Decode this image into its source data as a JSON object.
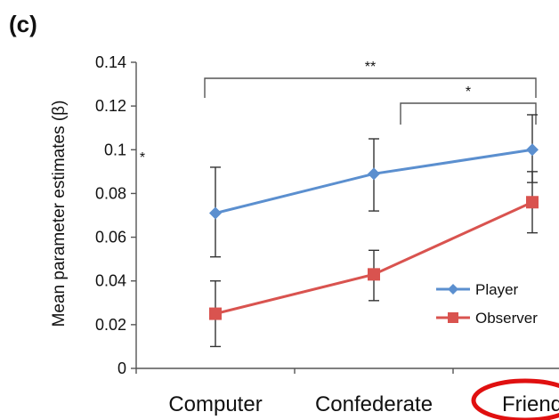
{
  "panel_label": "(c)",
  "chart_data": {
    "type": "line",
    "title": "",
    "ylabel": "Mean parameter estimates (β)",
    "xlabel": "",
    "categories": [
      "Computer",
      "Confederate",
      "Friend"
    ],
    "ylim": [
      0,
      0.14
    ],
    "yticks": [
      {
        "value": 0,
        "label": "0"
      },
      {
        "value": 0.02,
        "label": "0.02"
      },
      {
        "value": 0.04,
        "label": "0.04"
      },
      {
        "value": 0.06,
        "label": "0.06"
      },
      {
        "value": 0.08,
        "label": "0.08"
      },
      {
        "value": 0.1,
        "label": "0.1"
      },
      {
        "value": 0.12,
        "label": "0.12"
      },
      {
        "value": 0.14,
        "label": "0.14"
      }
    ],
    "grid": false,
    "legend_position": "bottom-right",
    "series": [
      {
        "name": "Player",
        "color": "#5b8fcf",
        "marker": "diamond",
        "values": [
          0.071,
          0.089,
          0.1
        ],
        "err_low": [
          0.051,
          0.072,
          0.085
        ],
        "err_high": [
          0.092,
          0.105,
          0.116
        ]
      },
      {
        "name": "Observer",
        "color": "#d9534f",
        "marker": "square",
        "values": [
          0.025,
          0.043,
          0.076
        ],
        "err_low": [
          0.01,
          0.031,
          0.062
        ],
        "err_high": [
          0.04,
          0.054,
          0.09
        ]
      }
    ],
    "significance": [
      {
        "from": 0,
        "to": 2,
        "label": "**"
      },
      {
        "from": 1,
        "to": 2,
        "label": "*"
      }
    ],
    "side_marks": [
      "*"
    ],
    "highlight": {
      "category_index": 2,
      "color": "#e01010"
    }
  }
}
